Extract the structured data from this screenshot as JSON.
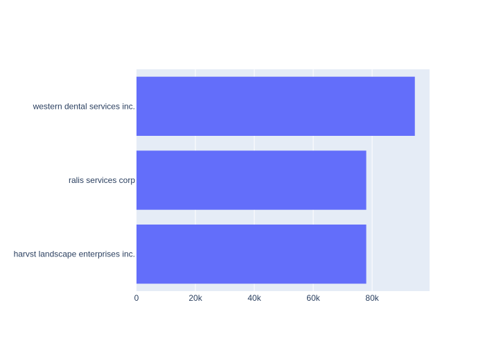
{
  "chart_data": {
    "type": "bar",
    "orientation": "horizontal",
    "categories": [
      "western dental services inc.",
      "ralis services corp",
      "harvst landscape enterprises inc."
    ],
    "values": [
      94500,
      78000,
      78000
    ],
    "xlim": [
      0,
      99500
    ],
    "x_ticks": [
      0,
      20000,
      40000,
      60000,
      80000
    ],
    "x_tick_labels": [
      "0",
      "20k",
      "40k",
      "60k",
      "80k"
    ],
    "grid": true,
    "colors": {
      "bar": "#636efa",
      "plot_bg": "#e5ecf6",
      "grid": "#ffffff",
      "text": "#2a3f5f"
    }
  }
}
